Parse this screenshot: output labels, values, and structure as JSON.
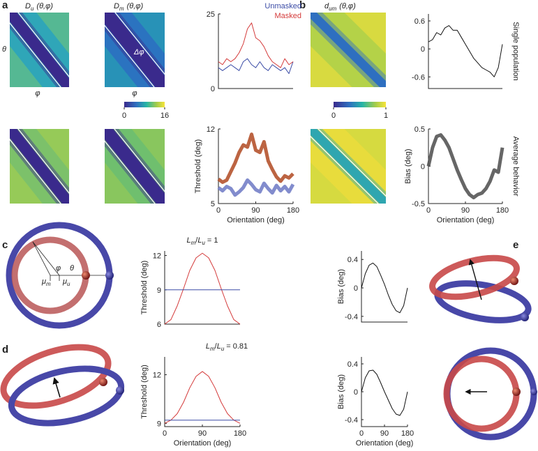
{
  "panel_labels": [
    "a",
    "b",
    "c",
    "d",
    "e"
  ],
  "heatmaps": [
    {
      "symbol": "D",
      "sub": "u",
      "args": "(θ,φ)"
    },
    {
      "symbol": "D",
      "sub": "m",
      "args": "(θ,φ)"
    },
    {
      "symbol": "d",
      "sub": "um",
      "args": "(θ,φ)"
    }
  ],
  "heatmap_axes": {
    "theta": "θ",
    "phi": "φ",
    "delta_phi": "Δφ"
  },
  "colorbars": [
    {
      "lim": [
        0,
        16
      ],
      "ticks": [
        0,
        16
      ]
    },
    {
      "lim": [
        0,
        1
      ],
      "ticks": [
        0,
        1
      ]
    }
  ],
  "ring_labels": {
    "phi": "φ",
    "theta": "θ",
    "mu_m": {
      "symbol": "μ",
      "sub": "m"
    },
    "mu_u": {
      "symbol": "μ",
      "sub": "u"
    }
  },
  "chart_data": [
    {
      "type": "line",
      "xlim": [
        0,
        180
      ],
      "ylim": [
        0,
        25
      ],
      "yticks": [
        0,
        25
      ],
      "legend": "upper right",
      "x": [
        0,
        10,
        20,
        30,
        40,
        50,
        60,
        70,
        80,
        90,
        100,
        110,
        120,
        130,
        140,
        150,
        160,
        170,
        180
      ],
      "series": [
        {
          "name": "Unmasked",
          "color": "#3b4ca6",
          "values": [
            7,
            6,
            7,
            8,
            7,
            6,
            9,
            10,
            8,
            7,
            9,
            7,
            6,
            8,
            7,
            6,
            7,
            5,
            9
          ]
        },
        {
          "name": "Masked",
          "color": "#d43a3a",
          "values": [
            9,
            8,
            10,
            9,
            10,
            12,
            15,
            20,
            22,
            17,
            16,
            14,
            11,
            9,
            8,
            7,
            10,
            8,
            9
          ]
        }
      ]
    },
    {
      "type": "line",
      "xlim": [
        0,
        180
      ],
      "ylim": [
        5,
        12
      ],
      "yticks": [
        5,
        12
      ],
      "xticks": [
        0,
        90,
        180
      ],
      "xlabel": "Orientation (deg)",
      "ylabel": "Threshold (deg)",
      "x": [
        0,
        10,
        20,
        30,
        40,
        50,
        60,
        70,
        80,
        90,
        100,
        110,
        120,
        130,
        140,
        150,
        160,
        170,
        180
      ],
      "series": [
        {
          "color": "#7480c8",
          "values": [
            6.5,
            6.2,
            6.6,
            6.4,
            5.8,
            6.1,
            6.5,
            7.2,
            6.8,
            6.3,
            6.1,
            6.9,
            6.4,
            6.0,
            6.7,
            6.2,
            6.6,
            6.1,
            6.8
          ]
        },
        {
          "color": "#b5532e",
          "values": [
            7.3,
            7.0,
            7.2,
            8.0,
            8.8,
            9.8,
            10.5,
            10.3,
            11.5,
            10.0,
            9.8,
            10.8,
            9.0,
            8.2,
            7.5,
            7.1,
            7.6,
            7.4,
            7.8
          ]
        }
      ]
    },
    {
      "type": "line",
      "xlim": [
        0,
        180
      ],
      "ylim": [
        -0.85,
        0.75
      ],
      "yticks": [
        -0.6,
        0,
        0.6
      ],
      "side_label": "Single population",
      "x": [
        0,
        10,
        20,
        30,
        40,
        50,
        60,
        70,
        80,
        90,
        100,
        110,
        120,
        130,
        140,
        150,
        160,
        170,
        180
      ],
      "series": [
        {
          "color": "#111111",
          "values": [
            0.15,
            0.2,
            0.35,
            0.3,
            0.45,
            0.5,
            0.4,
            0.4,
            0.25,
            0.1,
            -0.05,
            -0.2,
            -0.3,
            -0.4,
            -0.45,
            -0.5,
            -0.6,
            -0.4,
            0.1
          ]
        }
      ]
    },
    {
      "type": "line",
      "xlim": [
        0,
        180
      ],
      "ylim": [
        -0.5,
        0.5
      ],
      "yticks": [
        -0.5,
        0,
        0.5
      ],
      "xticks": [
        0,
        90,
        180
      ],
      "xlabel": "Orientation (deg)",
      "ylabel": "Bias (deg)",
      "side_label": "Average behavior",
      "x": [
        0,
        10,
        20,
        30,
        40,
        50,
        60,
        70,
        80,
        90,
        100,
        110,
        120,
        130,
        140,
        150,
        160,
        170,
        180
      ],
      "series": [
        {
          "color": "#555555",
          "values": [
            0,
            0.25,
            0.4,
            0.42,
            0.35,
            0.25,
            0.1,
            -0.05,
            -0.18,
            -0.3,
            -0.38,
            -0.42,
            -0.38,
            -0.36,
            -0.3,
            -0.2,
            -0.05,
            -0.08,
            0.25
          ]
        }
      ]
    },
    {
      "type": "line",
      "xlim": [
        0,
        180
      ],
      "ylim": [
        6,
        12.4
      ],
      "yticks": [
        6,
        9,
        12
      ],
      "ylabel": "Threshold (deg)",
      "annotation": {
        "l1": "L",
        "s1": "m",
        "sep": "/",
        "l2": "L",
        "s2": "u",
        "rhs": "= 1"
      },
      "x": [
        0,
        15,
        30,
        45,
        60,
        75,
        90,
        105,
        120,
        135,
        150,
        165,
        180
      ],
      "series": [
        {
          "color": "#d43a3a",
          "values": [
            6,
            6.4,
            7.6,
            9.1,
            10.7,
            11.8,
            12.2,
            11.8,
            10.7,
            9.1,
            7.6,
            6.4,
            6
          ]
        },
        {
          "color": "#3b4ca6",
          "values": [
            9,
            9,
            9,
            9,
            9,
            9,
            9,
            9,
            9,
            9,
            9,
            9,
            9
          ]
        }
      ]
    },
    {
      "type": "line",
      "xlim": [
        0,
        180
      ],
      "ylim": [
        -0.48,
        0.52
      ],
      "yticks": [
        -0.4,
        0,
        0.4
      ],
      "ylabel": "Bias (deg)",
      "x": [
        0,
        15,
        30,
        45,
        60,
        75,
        90,
        105,
        120,
        135,
        150,
        165,
        180
      ],
      "series": [
        {
          "color": "#111111",
          "values": [
            0,
            0.2,
            0.32,
            0.35,
            0.3,
            0.18,
            0.05,
            -0.1,
            -0.23,
            -0.32,
            -0.35,
            -0.25,
            0
          ]
        }
      ]
    },
    {
      "type": "line",
      "xlim": [
        0,
        180
      ],
      "ylim": [
        8.8,
        13.1
      ],
      "yticks": [
        9,
        12
      ],
      "xticks": [
        0,
        90,
        180
      ],
      "xlabel": "Orientation (deg)",
      "ylabel": "Threshold (deg)",
      "annotation": {
        "l1": "L",
        "s1": "m",
        "sep": "/",
        "l2": "L",
        "s2": "u",
        "rhs": "= 0.81"
      },
      "x": [
        0,
        15,
        30,
        45,
        60,
        75,
        90,
        105,
        120,
        135,
        150,
        165,
        180
      ],
      "series": [
        {
          "color": "#d43a3a",
          "values": [
            9,
            9.2,
            9.6,
            10.3,
            11.2,
            11.9,
            12.2,
            11.9,
            11.2,
            10.3,
            9.6,
            9.2,
            9
          ]
        },
        {
          "color": "#3b4ca6",
          "values": [
            9.2,
            9.2,
            9.2,
            9.2,
            9.2,
            9.2,
            9.2,
            9.2,
            9.2,
            9.2,
            9.2,
            9.2,
            9.2
          ]
        }
      ]
    },
    {
      "type": "line",
      "xlim": [
        0,
        180
      ],
      "ylim": [
        -0.5,
        0.5
      ],
      "yticks": [
        -0.4,
        0,
        0.4
      ],
      "xticks": [
        0,
        90,
        180
      ],
      "xlabel": "Orientation (deg)",
      "ylabel": "Bias (deg)",
      "x": [
        0,
        15,
        30,
        45,
        60,
        75,
        90,
        105,
        120,
        135,
        150,
        165,
        180
      ],
      "series": [
        {
          "color": "#111111",
          "values": [
            0,
            0.2,
            0.3,
            0.31,
            0.25,
            0.13,
            0,
            -0.12,
            -0.24,
            -0.32,
            -0.34,
            -0.25,
            0
          ]
        }
      ]
    }
  ]
}
